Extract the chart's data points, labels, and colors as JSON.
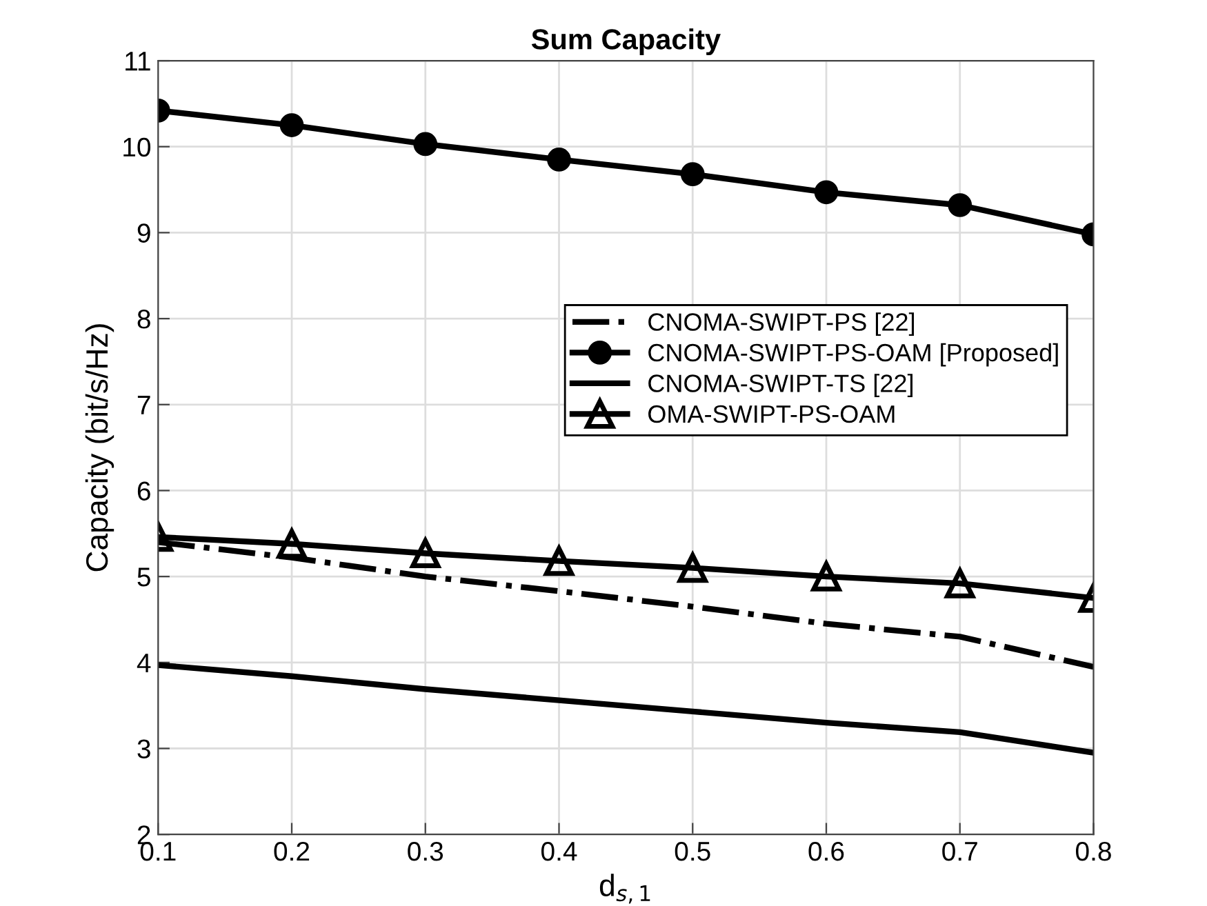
{
  "chart_data": {
    "type": "line",
    "title": "Sum Capacity",
    "xlabel": "d$_{s,1}$",
    "ylabel": "Capacity (bit/s/Hz)",
    "x": [
      0.1,
      0.2,
      0.3,
      0.4,
      0.5,
      0.6,
      0.7,
      0.8
    ],
    "series": [
      {
        "name": "CNOMA-SWIPT-PS [22]",
        "color": "#000000",
        "line_style": "dashdot",
        "marker": "none",
        "values": [
          5.4,
          5.22,
          5.0,
          4.83,
          4.65,
          4.45,
          4.3,
          3.95
        ]
      },
      {
        "name": "CNOMA-SWIPT-PS-OAM [Proposed]",
        "color": "#000000",
        "line_style": "solid",
        "marker": "circle",
        "values": [
          10.42,
          10.25,
          10.03,
          9.85,
          9.68,
          9.47,
          9.32,
          8.98
        ]
      },
      {
        "name": "CNOMA-SWIPT-TS [22]",
        "color": "#000000",
        "line_style": "solid",
        "marker": "none",
        "values": [
          3.97,
          3.84,
          3.69,
          3.56,
          3.43,
          3.3,
          3.19,
          2.95
        ]
      },
      {
        "name": "OMA-SWIPT-PS-OAM",
        "color": "#000000",
        "line_style": "solid",
        "marker": "triangle",
        "values": [
          5.46,
          5.38,
          5.27,
          5.18,
          5.1,
          5.0,
          4.92,
          4.75
        ]
      }
    ],
    "xlim": [
      0.1,
      0.8
    ],
    "xticks": [
      0.1,
      0.2,
      0.3,
      0.4,
      0.5,
      0.6,
      0.7,
      0.8
    ],
    "ylim": [
      2,
      11
    ],
    "yticks": [
      2,
      3,
      4,
      5,
      6,
      7,
      8,
      9,
      10,
      11
    ],
    "grid": true,
    "legend": "right"
  }
}
